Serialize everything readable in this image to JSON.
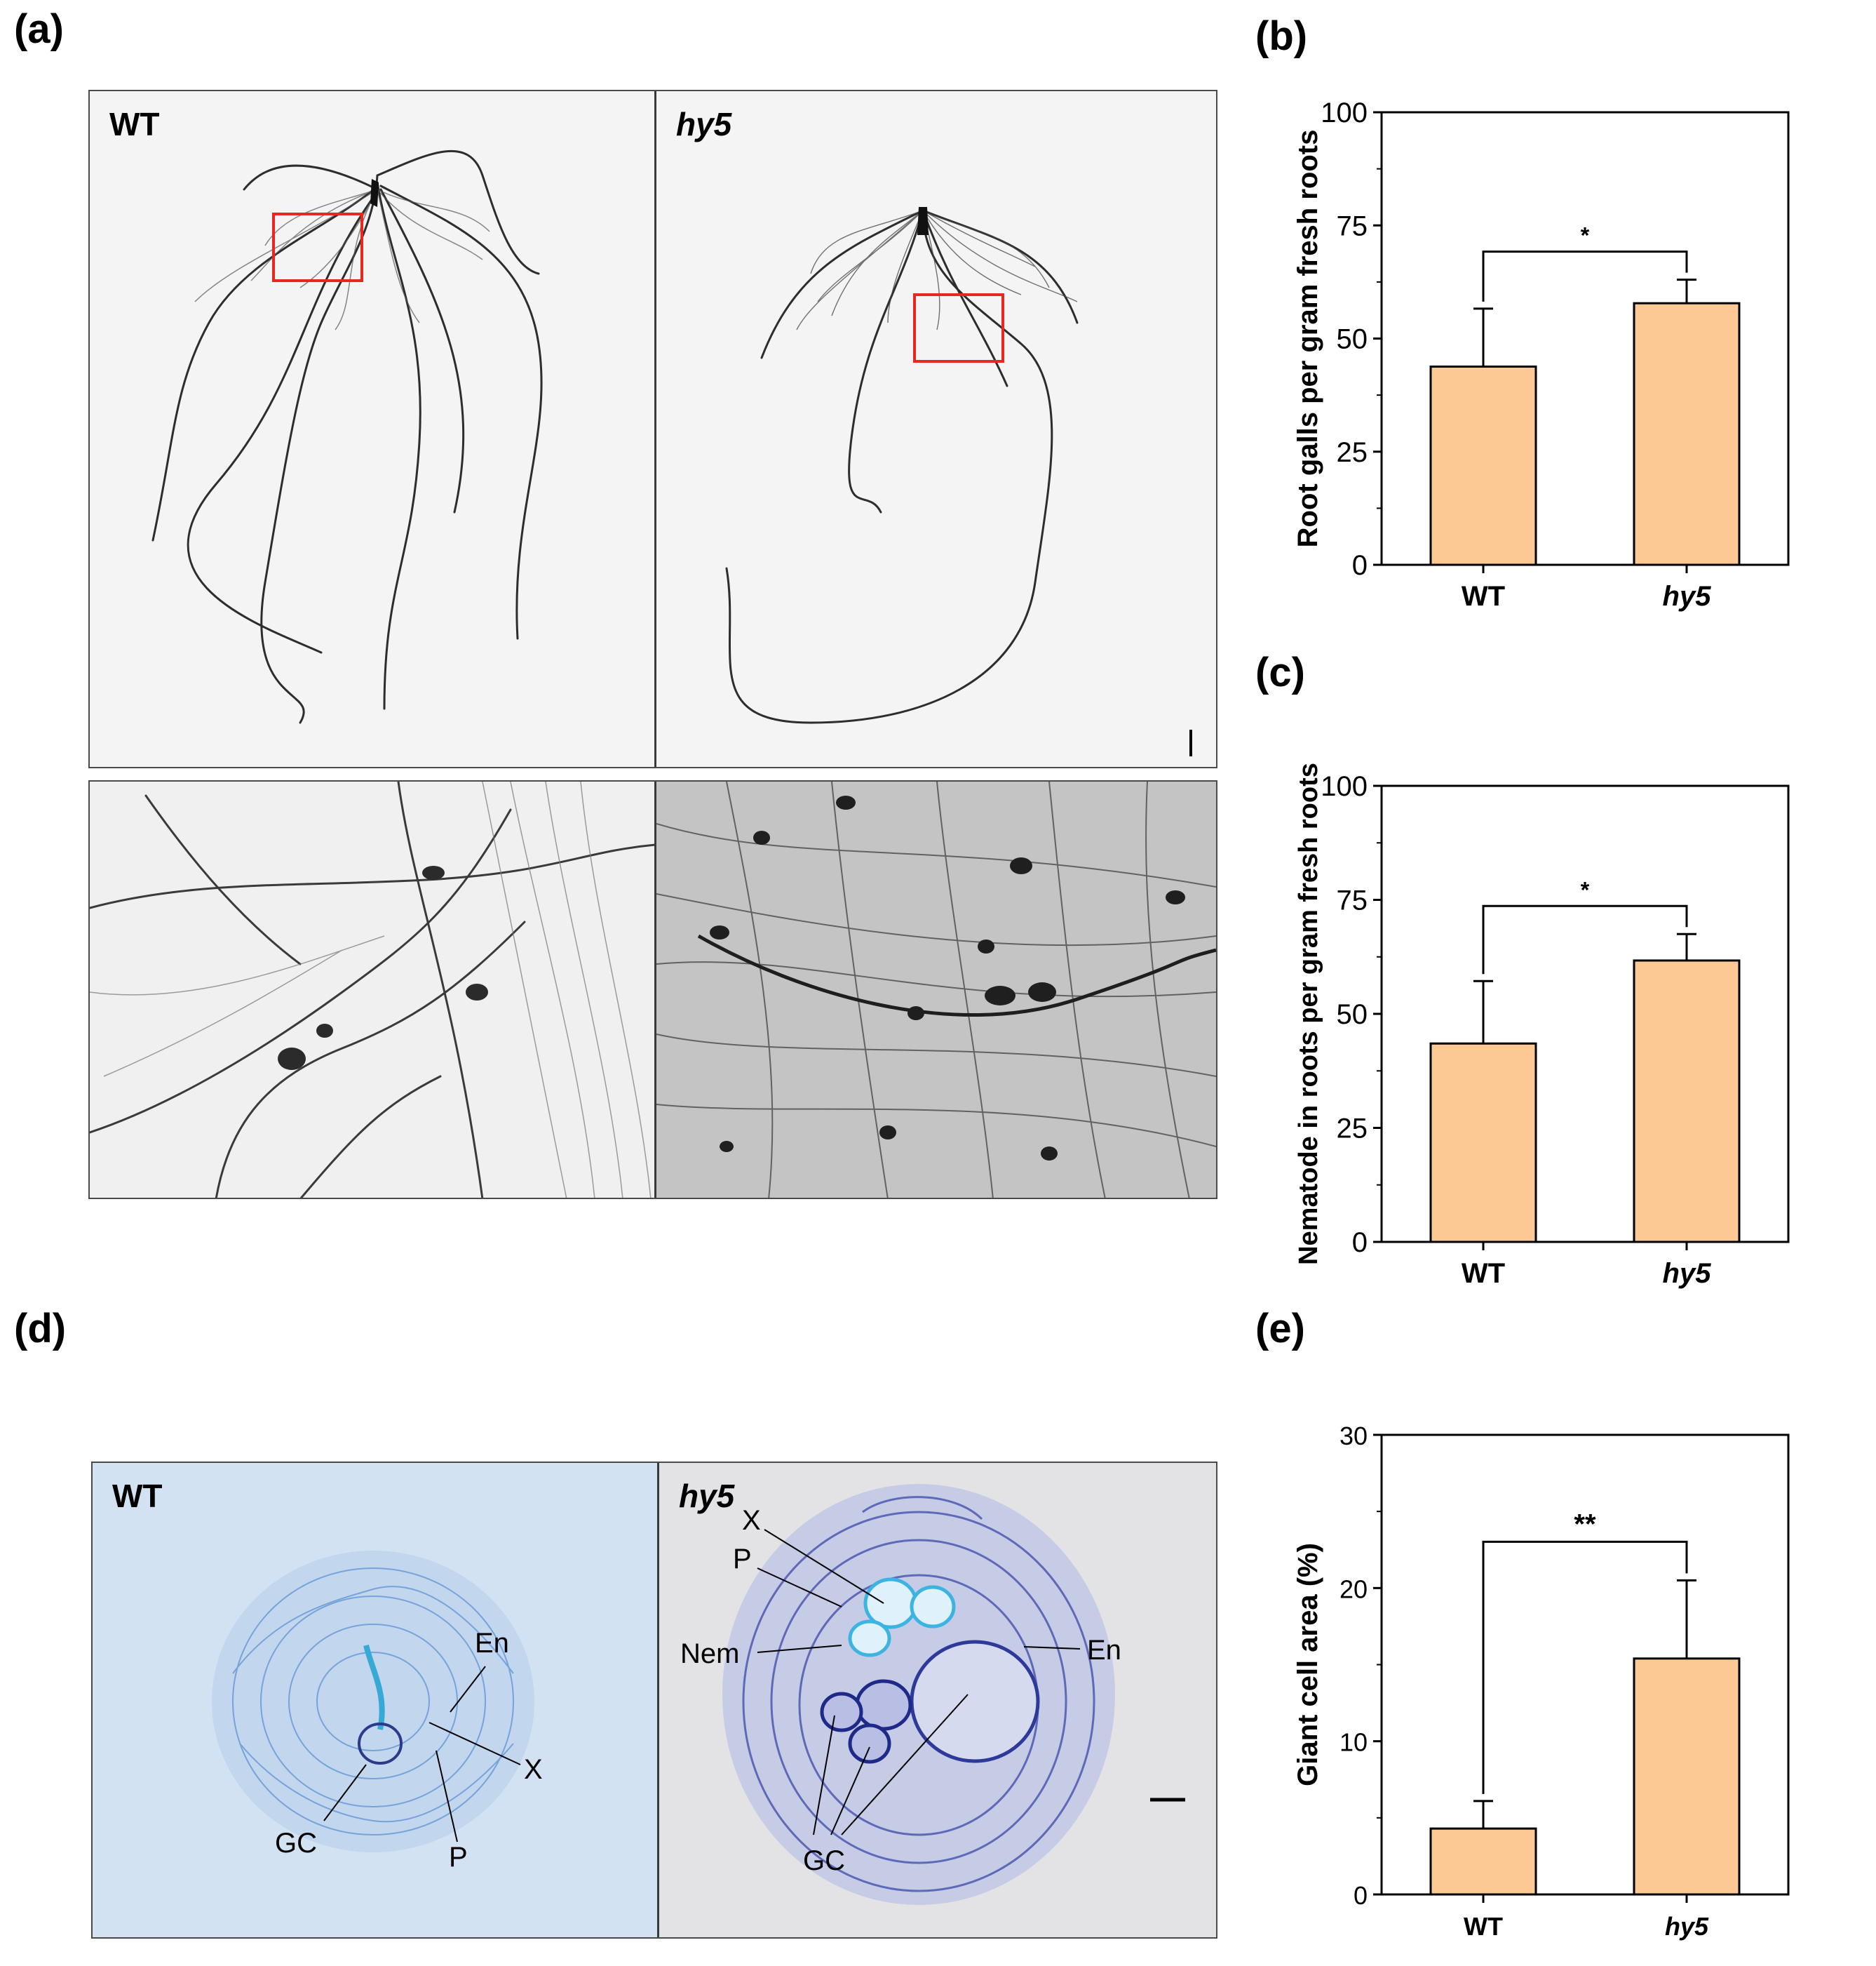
{
  "figure": {
    "panel_letters": {
      "a": "(a)",
      "b": "(b)",
      "c": "(c)",
      "d": "(d)",
      "e": "(e)"
    },
    "panel_a": {
      "top_left_label": "WT",
      "top_right_label": "hy5",
      "frame_color": "#e8281e"
    },
    "panel_d": {
      "left_label": "WT",
      "right_label": "hy5",
      "wt_annotations": {
        "en": "En",
        "x": "X",
        "gc": "GC",
        "p": "P"
      },
      "hy5_annotations": {
        "x": "X",
        "p": "P",
        "nem": "Nem",
        "gc": "GC",
        "en": "En"
      }
    }
  },
  "chart_data": [
    {
      "id": "b",
      "type": "bar",
      "categories": [
        "WT",
        "hy5"
      ],
      "values": [
        43.8,
        57.8
      ],
      "errors": [
        12.8,
        5.2
      ],
      "ylabel": "Root galls per gram fresh roots",
      "ylim": [
        0,
        100
      ],
      "yticks": [
        0,
        25,
        50,
        75,
        100
      ],
      "significance": "*",
      "bar_color": "#fcc994"
    },
    {
      "id": "c",
      "type": "bar",
      "categories": [
        "WT",
        "hy5"
      ],
      "values": [
        43.5,
        61.7
      ],
      "errors": [
        13.7,
        5.8
      ],
      "ylabel": "Nematode in roots per gram fresh roots",
      "ylim": [
        0,
        100
      ],
      "yticks": [
        0,
        25,
        50,
        75,
        100
      ],
      "significance": "*",
      "bar_color": "#fcc994"
    },
    {
      "id": "e",
      "type": "bar",
      "categories": [
        "WT",
        "hy5"
      ],
      "values": [
        4.3,
        15.4
      ],
      "errors": [
        1.8,
        5.1
      ],
      "ylabel": "Giant cell area (%)",
      "ylim": [
        0,
        30
      ],
      "yticks": [
        0,
        10,
        20,
        30
      ],
      "significance": "**",
      "bar_color": "#fcc994"
    }
  ]
}
